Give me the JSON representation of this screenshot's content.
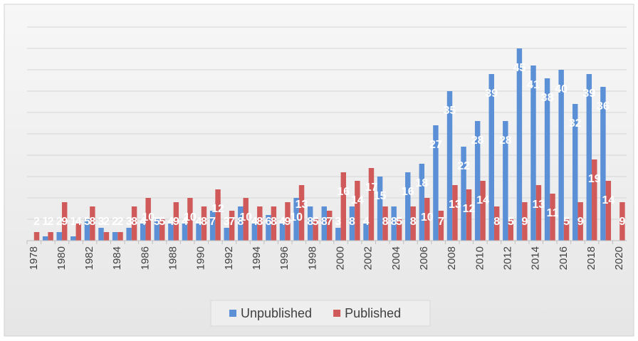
{
  "chart_data": {
    "type": "bar",
    "categories": [
      "1978",
      null,
      "1980",
      null,
      "1982",
      null,
      "1984",
      null,
      "1986",
      null,
      "1988",
      null,
      "1990",
      null,
      "1992",
      null,
      "1994",
      null,
      "1996",
      null,
      "1998",
      null,
      "2000",
      null,
      "2002",
      null,
      "2004",
      null,
      "2006",
      null,
      "2008",
      null,
      "2010",
      null,
      "2012",
      null,
      "2014",
      null,
      "2016",
      null,
      "2018",
      null,
      "2020"
    ],
    "series": [
      {
        "name": "Unpublished",
        "color": "#5b8fd6",
        "values": [
          null,
          1,
          2,
          1,
          5,
          3,
          2,
          3,
          4,
          5,
          4,
          4,
          4,
          7,
          3,
          8,
          4,
          6,
          4,
          10,
          8,
          8,
          3,
          8,
          4,
          15,
          8,
          16,
          18,
          27,
          35,
          22,
          28,
          39,
          28,
          45,
          41,
          38,
          40,
          32,
          39,
          36,
          null
        ]
      },
      {
        "name": "Published",
        "color": "#d05a5a",
        "values": [
          2,
          2,
          9,
          4,
          8,
          2,
          2,
          8,
          10,
          5,
          9,
          10,
          8,
          12,
          7,
          10,
          8,
          8,
          9,
          13,
          5,
          7,
          16,
          14,
          17,
          8,
          5,
          8,
          10,
          7,
          13,
          12,
          14,
          8,
          5,
          9,
          13,
          11,
          5,
          9,
          19,
          14,
          9
        ]
      }
    ],
    "ylim": [
      0,
      50
    ],
    "yticks": [
      0,
      5,
      10,
      15,
      20,
      25,
      30,
      35,
      40,
      45,
      50
    ],
    "grid": true,
    "legend": "bottom"
  }
}
